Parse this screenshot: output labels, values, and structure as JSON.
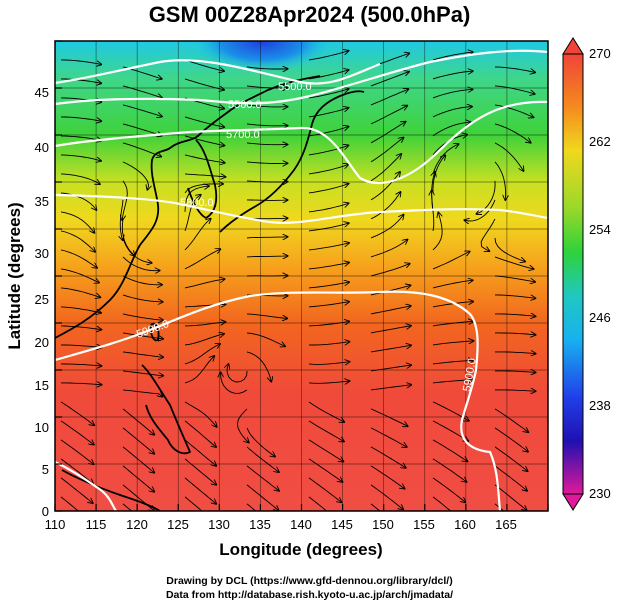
{
  "title": "GSM 00Z28Apr2024 (500.0hPa)",
  "xlabel": "Longitude (degrees)",
  "ylabel": "Latitude  (degrees)",
  "credit_line1": "Drawing by DCL (https://www.gfd-dennou.org/library/dcl/)",
  "credit_line2": "Data from http://database.rish.kyoto-u.ac.jp/arch/jmadata/",
  "map": {
    "lon_range": [
      110,
      170
    ],
    "lat_range": [
      0,
      50
    ],
    "lon_ticks": [
      "110",
      "115",
      "120",
      "125",
      "130",
      "135",
      "140",
      "145",
      "150",
      "155",
      "160",
      "165"
    ],
    "lat_ticks": [
      "0",
      "5",
      "10",
      "15",
      "20",
      "25",
      "30",
      "35",
      "40",
      "45"
    ],
    "shaded_field_range": [
      230,
      270
    ],
    "colorbar_labels": [
      "270",
      "262",
      "254",
      "246",
      "238",
      "230"
    ],
    "colors": {
      "low": "#e0199b",
      "cold": "#1a1ad0",
      "cyan": "#18c8e8",
      "green": "#3ad23a",
      "yellow": "#e8e81e",
      "orange": "#f58a1e",
      "red": "#f04438"
    },
    "contour_labels": [
      "5500.0",
      "5500.0",
      "5700.0",
      "5800.0",
      "5900.0",
      "5900.0"
    ],
    "elements": [
      "streamlines",
      "height-contours",
      "coastlines",
      "lat-lon-grid"
    ]
  }
}
